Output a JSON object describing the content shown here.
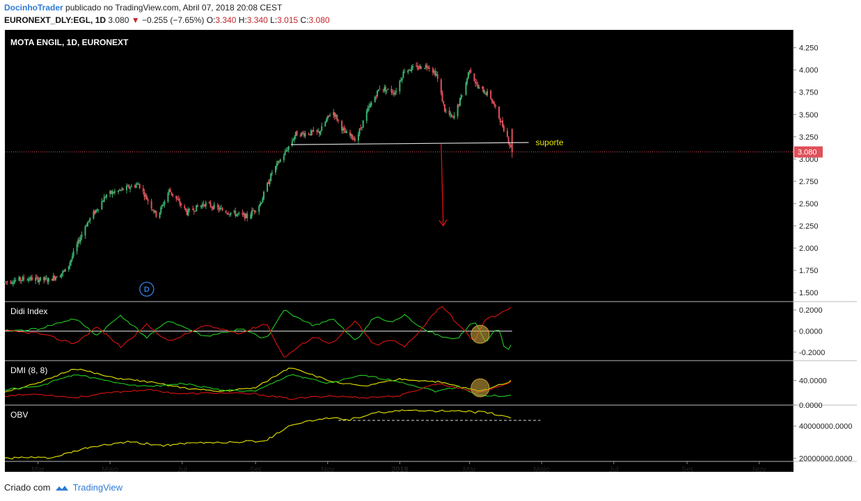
{
  "header": {
    "author": "DocinhoTrader",
    "published_text": "publicado no TradingView.com, Abril 07, 2018 20:08 CEST",
    "symbol": "EURONEXT_DLY:EGL, 1D",
    "last_price": "3.080",
    "change_icon": "triangle-down-icon",
    "change": "−0.255 (−7.65%)",
    "open_label": "O:",
    "open": "3.340",
    "high_label": "H:",
    "high": "3.340",
    "low_label": "L:",
    "low": "3.015",
    "close_label": "C:",
    "close": "3.080"
  },
  "footer": {
    "created_with": "Criado com",
    "brand": "TradingView",
    "brand_icon": "tradingview-cloud-icon"
  },
  "colors": {
    "background": "#000000",
    "up": "#3cb371",
    "down": "#e0505a",
    "green_line": "#22cc22",
    "red_line": "#dd1111",
    "yellow_line": "#e8e800",
    "support_line": "#dddddd",
    "arrow": "#dd1111",
    "price_tag": "#e0505a"
  },
  "chart_data": [
    {
      "type": "candlestick",
      "title": "MOTA ENGIL, 1D, EURONEXT",
      "yticks": [
        "4.250",
        "4.000",
        "3.750",
        "3.500",
        "3.250",
        "3.000",
        "2.750",
        "2.500",
        "2.250",
        "2.000",
        "1.750",
        "1.500"
      ],
      "ylim": [
        1.4,
        4.45
      ],
      "xlabels": [
        "Mar",
        "Maio",
        "Jul",
        "Set",
        "Nov",
        "2018",
        "Mar",
        "Maio",
        "Jul",
        "Set",
        "Nov"
      ],
      "x_range": [
        "2017-02-01",
        "2018-11-30"
      ],
      "x_data_end": "2018-04-06",
      "trend_anchors": [
        [
          "2017-02-01",
          1.62
        ],
        [
          "2017-02-20",
          1.66
        ],
        [
          "2017-03-10",
          1.64
        ],
        [
          "2017-03-25",
          1.75
        ],
        [
          "2017-04-10",
          2.25
        ],
        [
          "2017-04-28",
          2.6
        ],
        [
          "2017-05-10",
          2.65
        ],
        [
          "2017-05-25",
          2.72
        ],
        [
          "2017-06-10",
          2.35
        ],
        [
          "2017-06-20",
          2.65
        ],
        [
          "2017-07-05",
          2.4
        ],
        [
          "2017-07-20",
          2.5
        ],
        [
          "2017-08-05",
          2.42
        ],
        [
          "2017-08-25",
          2.35
        ],
        [
          "2017-09-05",
          2.5
        ],
        [
          "2017-09-15",
          2.85
        ],
        [
          "2017-09-25",
          3.05
        ],
        [
          "2017-10-05",
          3.28
        ],
        [
          "2017-10-25",
          3.3
        ],
        [
          "2017-11-05",
          3.55
        ],
        [
          "2017-11-15",
          3.3
        ],
        [
          "2017-11-25",
          3.22
        ],
        [
          "2017-12-05",
          3.55
        ],
        [
          "2017-12-15",
          3.8
        ],
        [
          "2017-12-28",
          3.75
        ],
        [
          "2018-01-05",
          4.0
        ],
        [
          "2018-01-25",
          4.05
        ],
        [
          "2018-02-01",
          3.95
        ],
        [
          "2018-02-08",
          3.55
        ],
        [
          "2018-02-15",
          3.45
        ],
        [
          "2018-02-25",
          3.8
        ],
        [
          "2018-03-01",
          4.02
        ],
        [
          "2018-03-08",
          3.8
        ],
        [
          "2018-03-18",
          3.72
        ],
        [
          "2018-03-25",
          3.5
        ],
        [
          "2018-04-02",
          3.25
        ],
        [
          "2018-04-06",
          3.08
        ]
      ],
      "last_candle": {
        "open": 3.34,
        "high": 3.34,
        "low": 3.015,
        "close": 3.08
      },
      "support": {
        "label": "suporte",
        "value": 3.17,
        "from": "2017-10-01",
        "to": "2018-04-20"
      },
      "arrow": {
        "x": "2018-02-05",
        "from": 3.17,
        "to": 2.25
      },
      "price_tag": "3.080",
      "last_price": 3.08,
      "marker": "D",
      "marker_x": "2017-06-01",
      "marker_y": 1.5
    },
    {
      "type": "line",
      "title": "Didi Index",
      "yticks": [
        "0.2000",
        "0.0000",
        "-0.2000"
      ],
      "ylim": [
        -0.28,
        0.28
      ],
      "zero_line": 0,
      "series": [
        {
          "color": "green",
          "anchors": [
            [
              "2017-02-01",
              0.0
            ],
            [
              "2017-03-01",
              0.02
            ],
            [
              "2017-04-01",
              0.12
            ],
            [
              "2017-04-20",
              -0.04
            ],
            [
              "2017-05-10",
              0.15
            ],
            [
              "2017-06-01",
              -0.06
            ],
            [
              "2017-06-20",
              0.1
            ],
            [
              "2017-07-20",
              -0.05
            ],
            [
              "2017-08-20",
              0.02
            ],
            [
              "2017-09-10",
              -0.08
            ],
            [
              "2017-09-25",
              0.2
            ],
            [
              "2017-10-20",
              0.05
            ],
            [
              "2017-11-05",
              0.12
            ],
            [
              "2017-11-25",
              -0.1
            ],
            [
              "2017-12-10",
              0.14
            ],
            [
              "2017-12-25",
              0.08
            ],
            [
              "2018-01-05",
              0.15
            ],
            [
              "2018-01-20",
              0.03
            ],
            [
              "2018-02-05",
              -0.05
            ],
            [
              "2018-02-18",
              -0.08
            ],
            [
              "2018-03-05",
              0.1
            ],
            [
              "2018-03-15",
              -0.12
            ],
            [
              "2018-03-25",
              0.05
            ],
            [
              "2018-04-01",
              -0.22
            ],
            [
              "2018-04-06",
              -0.1
            ]
          ]
        },
        {
          "color": "red",
          "anchors": [
            [
              "2017-02-01",
              0.0
            ],
            [
              "2017-03-01",
              -0.02
            ],
            [
              "2017-04-01",
              -0.12
            ],
            [
              "2017-04-20",
              0.04
            ],
            [
              "2017-05-10",
              -0.15
            ],
            [
              "2017-06-01",
              0.06
            ],
            [
              "2017-06-20",
              -0.1
            ],
            [
              "2017-07-20",
              0.05
            ],
            [
              "2017-08-20",
              -0.02
            ],
            [
              "2017-09-10",
              0.08
            ],
            [
              "2017-09-25",
              -0.25
            ],
            [
              "2017-10-20",
              -0.05
            ],
            [
              "2017-11-05",
              -0.12
            ],
            [
              "2017-11-25",
              0.1
            ],
            [
              "2017-12-10",
              -0.14
            ],
            [
              "2017-12-25",
              -0.08
            ],
            [
              "2018-01-05",
              -0.15
            ],
            [
              "2018-01-20",
              0.03
            ],
            [
              "2018-02-05",
              0.25
            ],
            [
              "2018-02-18",
              0.08
            ],
            [
              "2018-03-05",
              -0.1
            ],
            [
              "2018-03-15",
              0.12
            ],
            [
              "2018-03-25",
              0.15
            ],
            [
              "2018-04-01",
              0.2
            ],
            [
              "2018-04-06",
              0.24
            ]
          ]
        }
      ],
      "highlight": {
        "x": "2018-03-10",
        "y": -0.03
      }
    },
    {
      "type": "line",
      "title": "DMI (8, 8)",
      "yticks": [
        "40.0000",
        "0.0000"
      ],
      "ylim": [
        0,
        72
      ],
      "series": [
        {
          "color": "yellow",
          "anchors": [
            [
              "2017-02-01",
              22
            ],
            [
              "2017-03-01",
              35
            ],
            [
              "2017-04-01",
              60
            ],
            [
              "2017-05-01",
              45
            ],
            [
              "2017-06-01",
              38
            ],
            [
              "2017-07-01",
              28
            ],
            [
              "2017-08-01",
              22
            ],
            [
              "2017-09-01",
              28
            ],
            [
              "2017-10-01",
              62
            ],
            [
              "2017-11-01",
              40
            ],
            [
              "2017-12-01",
              30
            ],
            [
              "2018-01-01",
              42
            ],
            [
              "2018-02-01",
              38
            ],
            [
              "2018-02-20",
              30
            ],
            [
              "2018-03-10",
              22
            ],
            [
              "2018-04-06",
              40
            ]
          ]
        },
        {
          "color": "green",
          "anchors": [
            [
              "2017-02-01",
              25
            ],
            [
              "2017-03-01",
              30
            ],
            [
              "2017-04-01",
              50
            ],
            [
              "2017-05-01",
              38
            ],
            [
              "2017-06-01",
              30
            ],
            [
              "2017-07-01",
              35
            ],
            [
              "2017-08-01",
              25
            ],
            [
              "2017-09-01",
              22
            ],
            [
              "2017-10-01",
              50
            ],
            [
              "2017-11-01",
              35
            ],
            [
              "2017-12-01",
              48
            ],
            [
              "2018-01-01",
              38
            ],
            [
              "2018-02-01",
              22
            ],
            [
              "2018-02-20",
              30
            ],
            [
              "2018-03-10",
              15
            ],
            [
              "2018-04-06",
              15
            ]
          ]
        },
        {
          "color": "red",
          "anchors": [
            [
              "2017-02-01",
              15
            ],
            [
              "2017-03-01",
              18
            ],
            [
              "2017-04-01",
              12
            ],
            [
              "2017-05-01",
              20
            ],
            [
              "2017-06-01",
              25
            ],
            [
              "2017-07-01",
              18
            ],
            [
              "2017-08-01",
              20
            ],
            [
              "2017-09-01",
              18
            ],
            [
              "2017-10-01",
              10
            ],
            [
              "2017-11-01",
              15
            ],
            [
              "2017-12-01",
              12
            ],
            [
              "2018-01-01",
              15
            ],
            [
              "2018-02-01",
              35
            ],
            [
              "2018-02-20",
              28
            ],
            [
              "2018-03-10",
              20
            ],
            [
              "2018-04-06",
              38
            ]
          ]
        }
      ],
      "highlight": {
        "x": "2018-03-10",
        "y": 28
      }
    },
    {
      "type": "line",
      "title": "OBV",
      "yticks": [
        "40000000.0000",
        "20000000.0000"
      ],
      "ylim": [
        18000000,
        53000000
      ],
      "series": [
        {
          "color": "yellow",
          "anchors": [
            [
              "2017-02-01",
              20000000
            ],
            [
              "2017-03-15",
              20500000
            ],
            [
              "2017-04-15",
              27000000
            ],
            [
              "2017-05-15",
              30000000
            ],
            [
              "2017-06-15",
              28000000
            ],
            [
              "2017-07-15",
              29500000
            ],
            [
              "2017-08-15",
              30000000
            ],
            [
              "2017-09-10",
              31000000
            ],
            [
              "2017-10-01",
              41000000
            ],
            [
              "2017-11-01",
              45000000
            ],
            [
              "2017-11-20",
              44000000
            ],
            [
              "2017-12-15",
              48500000
            ],
            [
              "2018-01-15",
              50000000
            ],
            [
              "2018-02-15",
              49000000
            ],
            [
              "2018-03-15",
              48500000
            ],
            [
              "2018-04-06",
              45000000
            ]
          ]
        }
      ],
      "dashed_level": {
        "value": 43500000,
        "from": "2017-11-10",
        "to": "2018-04-30"
      }
    }
  ]
}
